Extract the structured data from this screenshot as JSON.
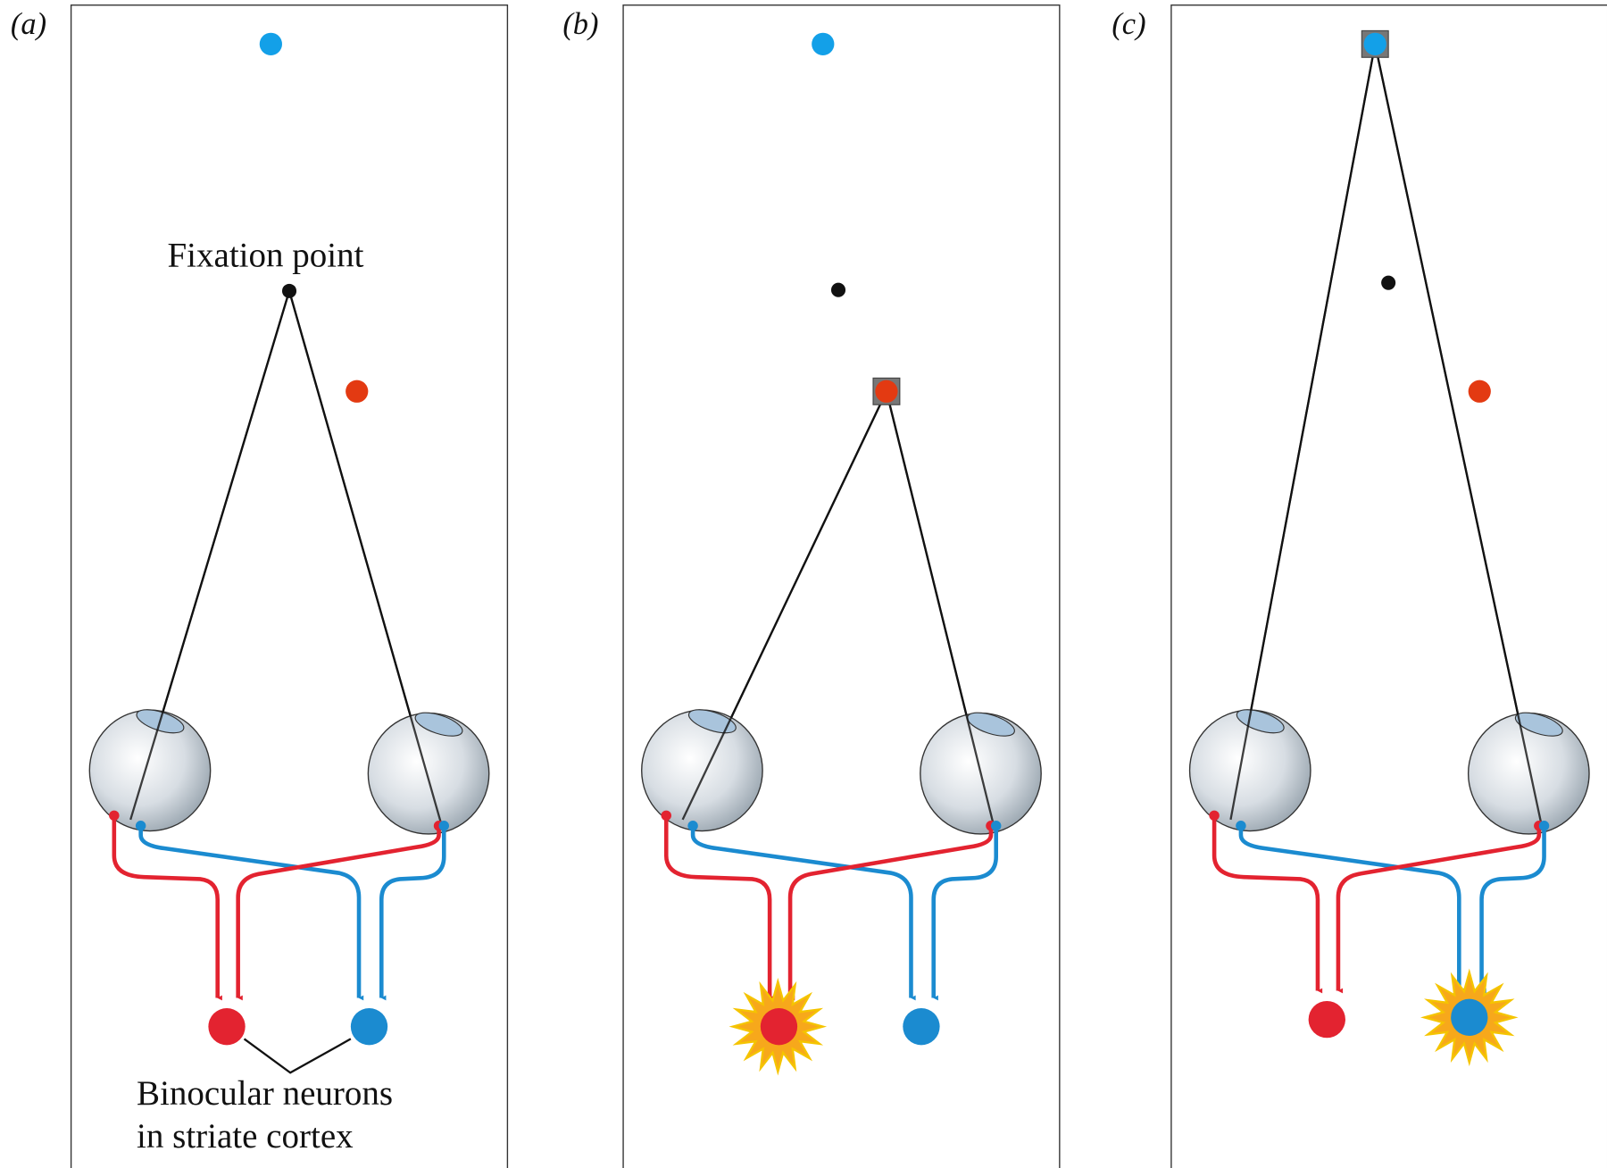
{
  "panels": [
    {
      "label": "(a)"
    },
    {
      "label": "(b)"
    },
    {
      "label": "(c)"
    }
  ],
  "annotations": {
    "fixation_point": "Fixation point",
    "neurons_line1": "Binocular neurons",
    "neurons_line2": "in striate cortex"
  }
}
